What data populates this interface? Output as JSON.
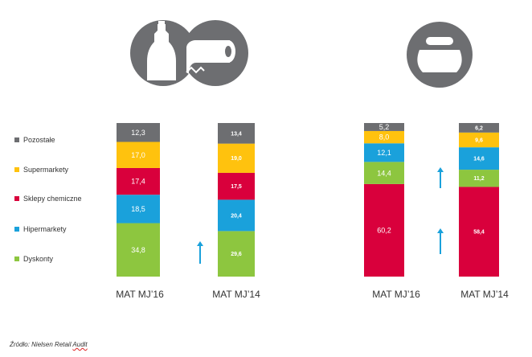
{
  "chart_data": [
    {
      "type": "bar",
      "stacked": true,
      "categories": [
        "MAT MJ'16",
        "MAT MJ'14"
      ],
      "series": [
        {
          "name": "Dyskonty",
          "values": [
            34.8,
            29.6
          ],
          "labels": [
            "34,8",
            "29,6"
          ],
          "color": "#8dc63f"
        },
        {
          "name": "Hipermarkety",
          "values": [
            18.5,
            20.4
          ],
          "labels": [
            "18,5",
            "20,4"
          ],
          "color": "#1aa1db"
        },
        {
          "name": "Sklepy chemiczne",
          "values": [
            17.4,
            17.5
          ],
          "labels": [
            "17,4",
            "17,5"
          ],
          "color": "#d9003c"
        },
        {
          "name": "Supermarkety",
          "values": [
            17.0,
            19.0
          ],
          "labels": [
            "17,0",
            "19,0"
          ],
          "color": "#ffc20e"
        },
        {
          "name": "Pozostałe",
          "values": [
            12.3,
            13.4
          ],
          "labels": [
            "12,3",
            "13,4"
          ],
          "color": "#6d6e71"
        }
      ],
      "ylim": [
        0,
        100
      ],
      "icons": [
        "dish-soap-bottle-icon",
        "paper-towel-roll-icon"
      ],
      "arrows": [
        {
          "category": "MAT MJ'16",
          "series": "Dyskonty",
          "direction": "up"
        }
      ]
    },
    {
      "type": "bar",
      "stacked": true,
      "categories": [
        "MAT MJ'16",
        "MAT MJ'14"
      ],
      "series": [
        {
          "name": "Sklepy chemiczne",
          "values": [
            60.2,
            58.4
          ],
          "labels": [
            "60,2",
            "58,4"
          ],
          "color": "#d9003c"
        },
        {
          "name": "Dyskonty",
          "values": [
            14.4,
            11.2
          ],
          "labels": [
            "14,4",
            "11,2"
          ],
          "color": "#8dc63f"
        },
        {
          "name": "Hipermarkety",
          "values": [
            12.1,
            14.6
          ],
          "labels": [
            "12,1",
            "14,6"
          ],
          "color": "#1aa1db"
        },
        {
          "name": "Supermarkety",
          "values": [
            8.0,
            9.6
          ],
          "labels": [
            "8,0",
            "9,6"
          ],
          "color": "#ffc20e"
        },
        {
          "name": "Pozostałe",
          "values": [
            5.2,
            6.2
          ],
          "labels": [
            "5,2",
            "6,2"
          ],
          "color": "#6d6e71"
        }
      ],
      "ylim": [
        0,
        100
      ],
      "icons": [
        "cream-jar-icon"
      ],
      "arrows": [
        {
          "category": "MAT MJ'16",
          "series": "Sklepy chemiczne",
          "direction": "up"
        },
        {
          "category": "MAT MJ'16",
          "series": "Dyskonty",
          "direction": "up"
        }
      ]
    }
  ],
  "legend": [
    {
      "label": "Pozostałe",
      "color": "#6d6e71"
    },
    {
      "label": "Supermarkety",
      "color": "#ffc20e"
    },
    {
      "label": "Sklepy chemiczne",
      "color": "#d9003c"
    },
    {
      "label": "Hipermarkety",
      "color": "#1aa1db"
    },
    {
      "label": "Dyskonty",
      "color": "#8dc63f"
    }
  ],
  "category_labels": [
    "MAT MJ’16",
    "MAT MJ’14",
    "MAT MJ’16",
    "MAT MJ’14"
  ],
  "source": {
    "prefix": "Źródło",
    "rest": ": Nielsen Retail ",
    "underlined": "Audit"
  },
  "colors": {
    "icon_circle": "#6d6e71",
    "arrow": "#1aa1db",
    "category_text": "#333333"
  }
}
